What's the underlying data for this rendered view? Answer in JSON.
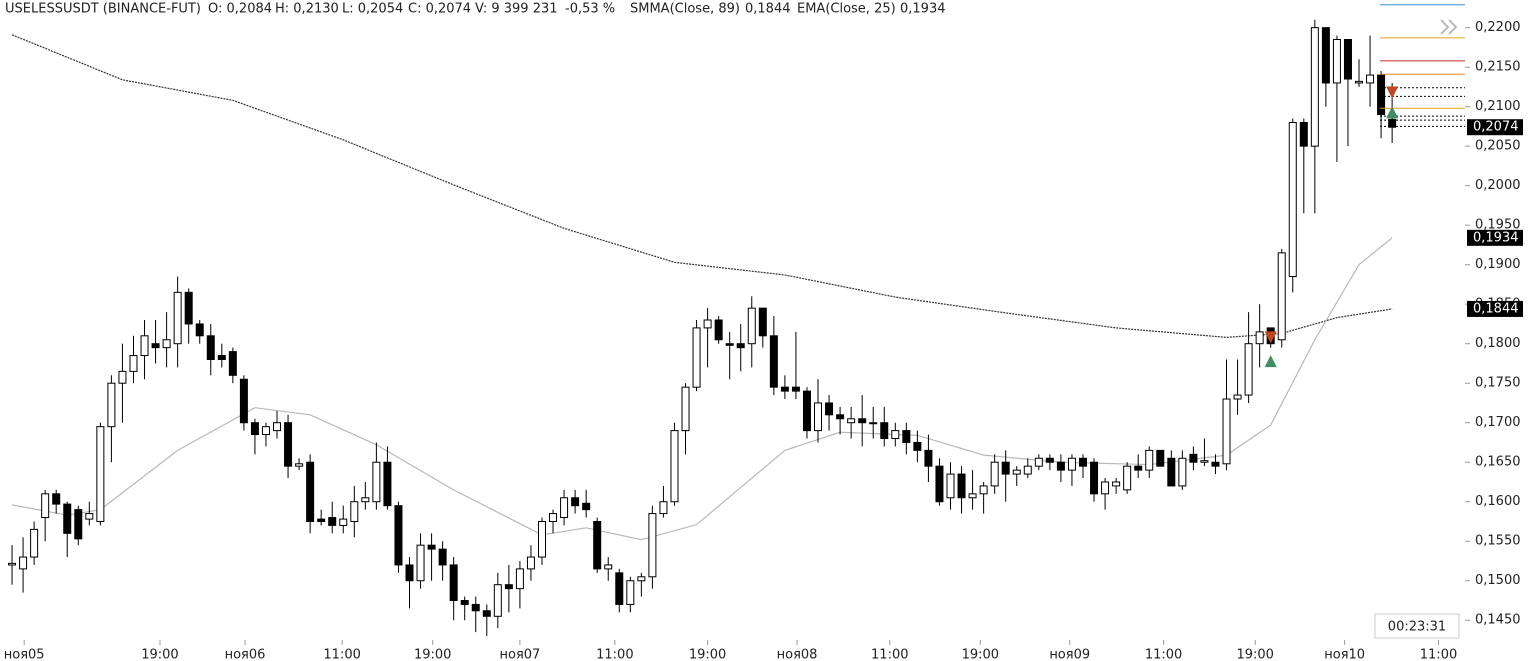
{
  "chart_data": {
    "type": "candlestick",
    "header": [
      "USELESSUSDT (BINANCE-FUT)",
      "O: 0,2084",
      "H: 0,2130",
      "L: 0,2054",
      "C: 0,2074",
      "V: 9 399 231",
      "-0,53 %",
      "SMMA(Close, 89)",
      "0,1844",
      "EMA(Close, 25)",
      "0,1934"
    ],
    "x": [
      0,
      1,
      2,
      3,
      4,
      5,
      6,
      7,
      8,
      9,
      10,
      11,
      12,
      13,
      14,
      15,
      16,
      17,
      18,
      19,
      20,
      21,
      22,
      23,
      24,
      25,
      26,
      27,
      28,
      29,
      30,
      31,
      32,
      33,
      34,
      35,
      36,
      37,
      38,
      39,
      40,
      41,
      42,
      43,
      44,
      45,
      46,
      47,
      48,
      49,
      50,
      51,
      52,
      53,
      54,
      55,
      56,
      57,
      58,
      59,
      60,
      61,
      62,
      63,
      64,
      65,
      66,
      67,
      68,
      69,
      70,
      71,
      72,
      73,
      74,
      75,
      76,
      77,
      78,
      79,
      80,
      81,
      82,
      83,
      84,
      85,
      86,
      87,
      88,
      89,
      90,
      91,
      92,
      93,
      94,
      95,
      96,
      97,
      98,
      99,
      100,
      101,
      102,
      103,
      104,
      105,
      106,
      107,
      108,
      109,
      110,
      111,
      112,
      113,
      114,
      115,
      116,
      117,
      118,
      119,
      120,
      121,
      122,
      123,
      124,
      125
    ],
    "open": [
      0.152,
      0.1515,
      0.153,
      0.158,
      0.161,
      0.1597,
      0.159,
      0.1578,
      0.1575,
      0.1695,
      0.175,
      0.1765,
      0.1785,
      0.18,
      0.1795,
      0.18,
      0.1865,
      0.1825,
      0.181,
      0.1785,
      0.179,
      0.1755,
      0.17,
      0.1685,
      0.169,
      0.17,
      0.1645,
      0.165,
      0.1578,
      0.158,
      0.157,
      0.1575,
      0.16,
      0.16,
      0.165,
      0.1595,
      0.152,
      0.15,
      0.1545,
      0.154,
      0.152,
      0.1475,
      0.147,
      0.1462,
      0.1455,
      0.1495,
      0.149,
      0.1515,
      0.153,
      0.1575,
      0.158,
      0.1605,
      0.1598,
      0.1575,
      0.1515,
      0.151,
      0.147,
      0.15,
      0.1505,
      0.1585,
      0.16,
      0.169,
      0.1745,
      0.182,
      0.183,
      0.18,
      0.18,
      0.18,
      0.1845,
      0.181,
      0.1745,
      0.1745,
      0.174,
      0.169,
      0.1725,
      0.171,
      0.17,
      0.1705,
      0.17,
      0.17,
      0.168,
      0.169,
      0.1675,
      0.1665,
      0.1645,
      0.1605,
      0.1635,
      0.1605,
      0.161,
      0.162,
      0.165,
      0.1635,
      0.1635,
      0.1645,
      0.1655,
      0.165,
      0.164,
      0.1655,
      0.165,
      0.161,
      0.162,
      0.1615,
      0.1645,
      0.164,
      0.1665,
      0.1655,
      0.162,
      0.166,
      0.165,
      0.165,
      0.1648,
      0.173,
      0.1735,
      0.18,
      0.182,
      0.1805,
      0.1885,
      0.208,
      0.205,
      0.22,
      0.213,
      0.2185,
      0.213,
      0.213,
      0.214,
      0.2084
    ],
    "high": [
      0.1545,
      0.1555,
      0.1575,
      0.1615,
      0.1615,
      0.16,
      0.1595,
      0.16,
      0.17,
      0.176,
      0.18,
      0.181,
      0.183,
      0.183,
      0.184,
      0.1885,
      0.187,
      0.183,
      0.1825,
      0.18,
      0.1795,
      0.176,
      0.1705,
      0.17,
      0.1715,
      0.171,
      0.1655,
      0.166,
      0.159,
      0.16,
      0.1595,
      0.162,
      0.1625,
      0.1675,
      0.167,
      0.16,
      0.153,
      0.156,
      0.156,
      0.155,
      0.153,
      0.148,
      0.148,
      0.147,
      0.151,
      0.152,
      0.1525,
      0.1545,
      0.158,
      0.159,
      0.1615,
      0.1615,
      0.1615,
      0.158,
      0.153,
      0.1515,
      0.1505,
      0.151,
      0.1595,
      0.162,
      0.17,
      0.175,
      0.183,
      0.1845,
      0.1835,
      0.1815,
      0.1825,
      0.186,
      0.1845,
      0.1835,
      0.176,
      0.1815,
      0.1745,
      0.1755,
      0.1735,
      0.172,
      0.172,
      0.1735,
      0.172,
      0.172,
      0.17,
      0.17,
      0.169,
      0.1685,
      0.1655,
      0.165,
      0.1645,
      0.164,
      0.1625,
      0.166,
      0.1665,
      0.1645,
      0.1655,
      0.166,
      0.166,
      0.166,
      0.166,
      0.166,
      0.1655,
      0.163,
      0.163,
      0.165,
      0.166,
      0.167,
      0.1665,
      0.1665,
      0.1665,
      0.167,
      0.168,
      0.166,
      0.178,
      0.178,
      0.184,
      0.185,
      0.182,
      0.192,
      0.2085,
      0.2085,
      0.221,
      0.22,
      0.219,
      0.2185,
      0.216,
      0.219,
      0.2145,
      0.213
    ],
    "low": [
      0.1495,
      0.1485,
      0.152,
      0.155,
      0.1585,
      0.153,
      0.1545,
      0.157,
      0.157,
      0.165,
      0.17,
      0.175,
      0.1755,
      0.1775,
      0.177,
      0.177,
      0.18,
      0.18,
      0.176,
      0.177,
      0.175,
      0.169,
      0.166,
      0.167,
      0.168,
      0.163,
      0.164,
      0.156,
      0.157,
      0.156,
      0.156,
      0.1555,
      0.159,
      0.159,
      0.159,
      0.151,
      0.1465,
      0.149,
      0.15,
      0.15,
      0.145,
      0.145,
      0.1435,
      0.143,
      0.144,
      0.146,
      0.1465,
      0.15,
      0.152,
      0.156,
      0.157,
      0.1585,
      0.158,
      0.151,
      0.15,
      0.146,
      0.146,
      0.148,
      0.149,
      0.158,
      0.1595,
      0.166,
      0.174,
      0.177,
      0.18,
      0.1755,
      0.1765,
      0.177,
      0.1795,
      0.1735,
      0.173,
      0.173,
      0.168,
      0.1675,
      0.169,
      0.1685,
      0.168,
      0.167,
      0.168,
      0.167,
      0.167,
      0.166,
      0.165,
      0.1625,
      0.1595,
      0.159,
      0.1585,
      0.159,
      0.1585,
      0.161,
      0.16,
      0.162,
      0.163,
      0.164,
      0.164,
      0.1625,
      0.162,
      0.163,
      0.16,
      0.159,
      0.161,
      0.161,
      0.163,
      0.163,
      0.1645,
      0.162,
      0.1615,
      0.164,
      0.1645,
      0.1635,
      0.164,
      0.171,
      0.1725,
      0.177,
      0.1795,
      0.1795,
      0.1865,
      0.1965,
      0.1965,
      0.21,
      0.203,
      0.205,
      0.2125,
      0.21,
      0.206,
      0.2054
    ],
    "close": [
      0.1522,
      0.153,
      0.1565,
      0.161,
      0.1597,
      0.156,
      0.1553,
      0.1585,
      0.1695,
      0.175,
      0.1765,
      0.1785,
      0.181,
      0.1795,
      0.1805,
      0.1865,
      0.1825,
      0.181,
      0.178,
      0.178,
      0.176,
      0.17,
      0.1685,
      0.1695,
      0.17,
      0.1645,
      0.1648,
      0.1575,
      0.1575,
      0.157,
      0.1578,
      0.16,
      0.1605,
      0.165,
      0.1595,
      0.152,
      0.15,
      0.1545,
      0.154,
      0.152,
      0.1475,
      0.147,
      0.1462,
      0.1455,
      0.1495,
      0.149,
      0.1515,
      0.153,
      0.1575,
      0.1585,
      0.1605,
      0.1595,
      0.159,
      0.1515,
      0.152,
      0.147,
      0.15,
      0.1505,
      0.1585,
      0.16,
      0.169,
      0.1745,
      0.182,
      0.183,
      0.1805,
      0.1798,
      0.1795,
      0.1845,
      0.181,
      0.1745,
      0.174,
      0.174,
      0.169,
      0.1725,
      0.171,
      0.1705,
      0.1705,
      0.17,
      0.17,
      0.168,
      0.169,
      0.1675,
      0.1665,
      0.1645,
      0.16,
      0.1635,
      0.1605,
      0.161,
      0.162,
      0.165,
      0.1635,
      0.164,
      0.1645,
      0.1655,
      0.165,
      0.164,
      0.1655,
      0.1645,
      0.161,
      0.1625,
      0.1625,
      0.1645,
      0.164,
      0.1665,
      0.1645,
      0.162,
      0.1655,
      0.165,
      0.1652,
      0.1645,
      0.173,
      0.1735,
      0.18,
      0.1815,
      0.18,
      0.1915,
      0.208,
      0.205,
      0.22,
      0.213,
      0.2185,
      0.2135,
      0.2132,
      0.214,
      0.209,
      0.2074
    ],
    "up_color": "#ffffff",
    "down_color": "#000000",
    "indicators": [
      {
        "color": "#333333",
        "dashed": true,
        "x": [
          0,
          10,
          20,
          30,
          40,
          50,
          60,
          70,
          80,
          90,
          100,
          110,
          115,
          120,
          125
        ],
        "values": [
          0.2191,
          0.2134,
          0.2108,
          0.2058,
          0.2001,
          0.1946,
          0.1903,
          0.1887,
          0.1859,
          0.1839,
          0.182,
          0.1808,
          0.1813,
          0.1833,
          0.1844
        ]
      },
      {
        "color": "#b8b8b8",
        "dashed": false,
        "x": [
          0,
          5,
          8,
          15,
          22,
          27,
          33,
          40,
          48,
          52,
          57,
          62,
          70,
          75,
          82,
          88,
          95,
          103,
          110,
          114,
          118,
          122,
          125
        ],
        "values": [
          0.1596,
          0.1583,
          0.159,
          0.1665,
          0.1719,
          0.171,
          0.1672,
          0.1615,
          0.1558,
          0.1567,
          0.1552,
          0.1571,
          0.1665,
          0.1688,
          0.1684,
          0.1659,
          0.165,
          0.1647,
          0.1659,
          0.1697,
          0.1805,
          0.19,
          0.1934
        ]
      }
    ],
    "xlim": [
      -1.09,
      131.6
    ],
    "ylim": [
      0.1425,
      0.2235
    ],
    "yticks": [
      {
        "value": 0.145,
        "label": "0,1450"
      },
      {
        "value": 0.15,
        "label": "0,1500"
      },
      {
        "value": 0.155,
        "label": "0,1550"
      },
      {
        "value": 0.16,
        "label": "0,1600"
      },
      {
        "value": 0.165,
        "label": "0,1650"
      },
      {
        "value": 0.17,
        "label": "0,1700"
      },
      {
        "value": 0.175,
        "label": "0,1750"
      },
      {
        "value": 0.18,
        "label": "0,1800"
      },
      {
        "value": 0.185,
        "label": "0,1850"
      },
      {
        "value": 0.19,
        "label": "0,1900"
      },
      {
        "value": 0.195,
        "label": "0,1950"
      },
      {
        "value": 0.2,
        "label": "0,2000"
      },
      {
        "value": 0.205,
        "label": "0,2050"
      },
      {
        "value": 0.21,
        "label": "0,2100"
      },
      {
        "value": 0.215,
        "label": "0,2150"
      },
      {
        "value": 0.22,
        "label": "0,2200"
      }
    ],
    "xticks": [
      {
        "value": 1.1,
        "label": "ноя05"
      },
      {
        "value": 13.4,
        "label": "19:00"
      },
      {
        "value": 21.1,
        "label": "ноя06"
      },
      {
        "value": 29.9,
        "label": "11:00"
      },
      {
        "value": 38.1,
        "label": "19:00"
      },
      {
        "value": 46,
        "label": "ноя07"
      },
      {
        "value": 54.6,
        "label": "11:00"
      },
      {
        "value": 63,
        "label": "19:00"
      },
      {
        "value": 71.1,
        "label": "ноя08"
      },
      {
        "value": 79.5,
        "label": "11:00"
      },
      {
        "value": 87.7,
        "label": "19:00"
      },
      {
        "value": 95.8,
        "label": "ноя09"
      },
      {
        "value": 104.3,
        "label": "11:00"
      },
      {
        "value": 112.6,
        "label": "19:00"
      },
      {
        "value": 120.7,
        "label": "ноя10"
      },
      {
        "value": 129.2,
        "label": "11:00"
      }
    ],
    "price_labels": [
      {
        "value": 0.2074,
        "label": "0,2074"
      },
      {
        "value": 0.1934,
        "label": "0,1934"
      },
      {
        "value": 0.1844,
        "label": "0,1844"
      }
    ],
    "levels": [
      {
        "value": 0.2229,
        "color": "#3a8fd0",
        "dashed": false
      },
      {
        "value": 0.2187,
        "color": "#e0a020",
        "dashed": false
      },
      {
        "value": 0.2158,
        "color": "#cc2a2a",
        "dashed": false
      },
      {
        "value": 0.2141,
        "color": "#e08a20",
        "dashed": false
      },
      {
        "value": 0.2124,
        "color": "#000000",
        "dashed": true
      },
      {
        "value": 0.2113,
        "color": "#000000",
        "dashed": true
      },
      {
        "value": 0.2098,
        "color": "#e0a020",
        "dashed": false
      },
      {
        "value": 0.2088,
        "color": "#000000",
        "dashed": true
      },
      {
        "value": 0.2083,
        "color": "#000000",
        "dashed": true
      },
      {
        "value": 0.2075,
        "color": "#000000",
        "dashed": true
      }
    ],
    "signals": [
      {
        "x": 114,
        "value": 0.1808,
        "kind": "sell",
        "color": "#c0461c"
      },
      {
        "x": 114,
        "value": 0.1778,
        "kind": "buy",
        "color": "#3f8f62"
      },
      {
        "x": 125,
        "value": 0.2118,
        "kind": "sell",
        "color": "#c0461c"
      },
      {
        "x": 125,
        "value": 0.2093,
        "kind": "buy",
        "color": "#3f8f62"
      }
    ],
    "timer": "00:23:31"
  }
}
